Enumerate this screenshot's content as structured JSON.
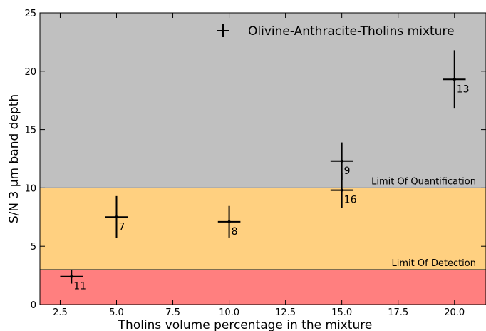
{
  "chart_data": {
    "type": "scatter",
    "title": "",
    "xlabel": "Tholins volume percentage in the mixture",
    "ylabel": "S/N 3 µm band depth",
    "xlim": [
      1.6,
      21.4
    ],
    "ylim": [
      0,
      25
    ],
    "xticks": [
      "2.5",
      "5.0",
      "7.5",
      "10.0",
      "12.5",
      "15.0",
      "17.5",
      "20.0"
    ],
    "yticks": [
      "0",
      "5",
      "10",
      "15",
      "20",
      "25"
    ],
    "grid": false,
    "legend": {
      "placement": "top-right",
      "entries": [
        "Olivine-Anthracite-Tholins mixture"
      ]
    },
    "bands": [
      {
        "label": "",
        "y_from": 0,
        "y_to": 3,
        "color": "#ff7f7f"
      },
      {
        "label": "Limit Of Detection",
        "y_from": 3,
        "y_to": 10,
        "color": "#ffd080"
      },
      {
        "label": "Limit Of Quantification",
        "y_from": 10,
        "y_to": 25,
        "color": "#c0c0c0"
      }
    ],
    "series": [
      {
        "points": [
          {
            "x": 3.0,
            "y": 2.4,
            "xerr": 0.5,
            "yerr": 0.6,
            "label": "11"
          },
          {
            "x": 5.0,
            "y": 7.5,
            "xerr": 0.5,
            "yerr": 1.8,
            "label": "7"
          },
          {
            "x": 10.0,
            "y": 7.1,
            "xerr": 0.5,
            "yerr": 1.35,
            "label": "8"
          },
          {
            "x": 15.0,
            "y": 12.3,
            "xerr": 0.5,
            "yerr": 1.6,
            "label": "9"
          },
          {
            "x": 15.0,
            "y": 9.8,
            "xerr": 0.5,
            "yerr": 1.5,
            "label": "16"
          },
          {
            "x": 20.0,
            "y": 19.3,
            "xerr": 0.5,
            "yerr": 2.5,
            "label": "13"
          }
        ]
      }
    ]
  }
}
